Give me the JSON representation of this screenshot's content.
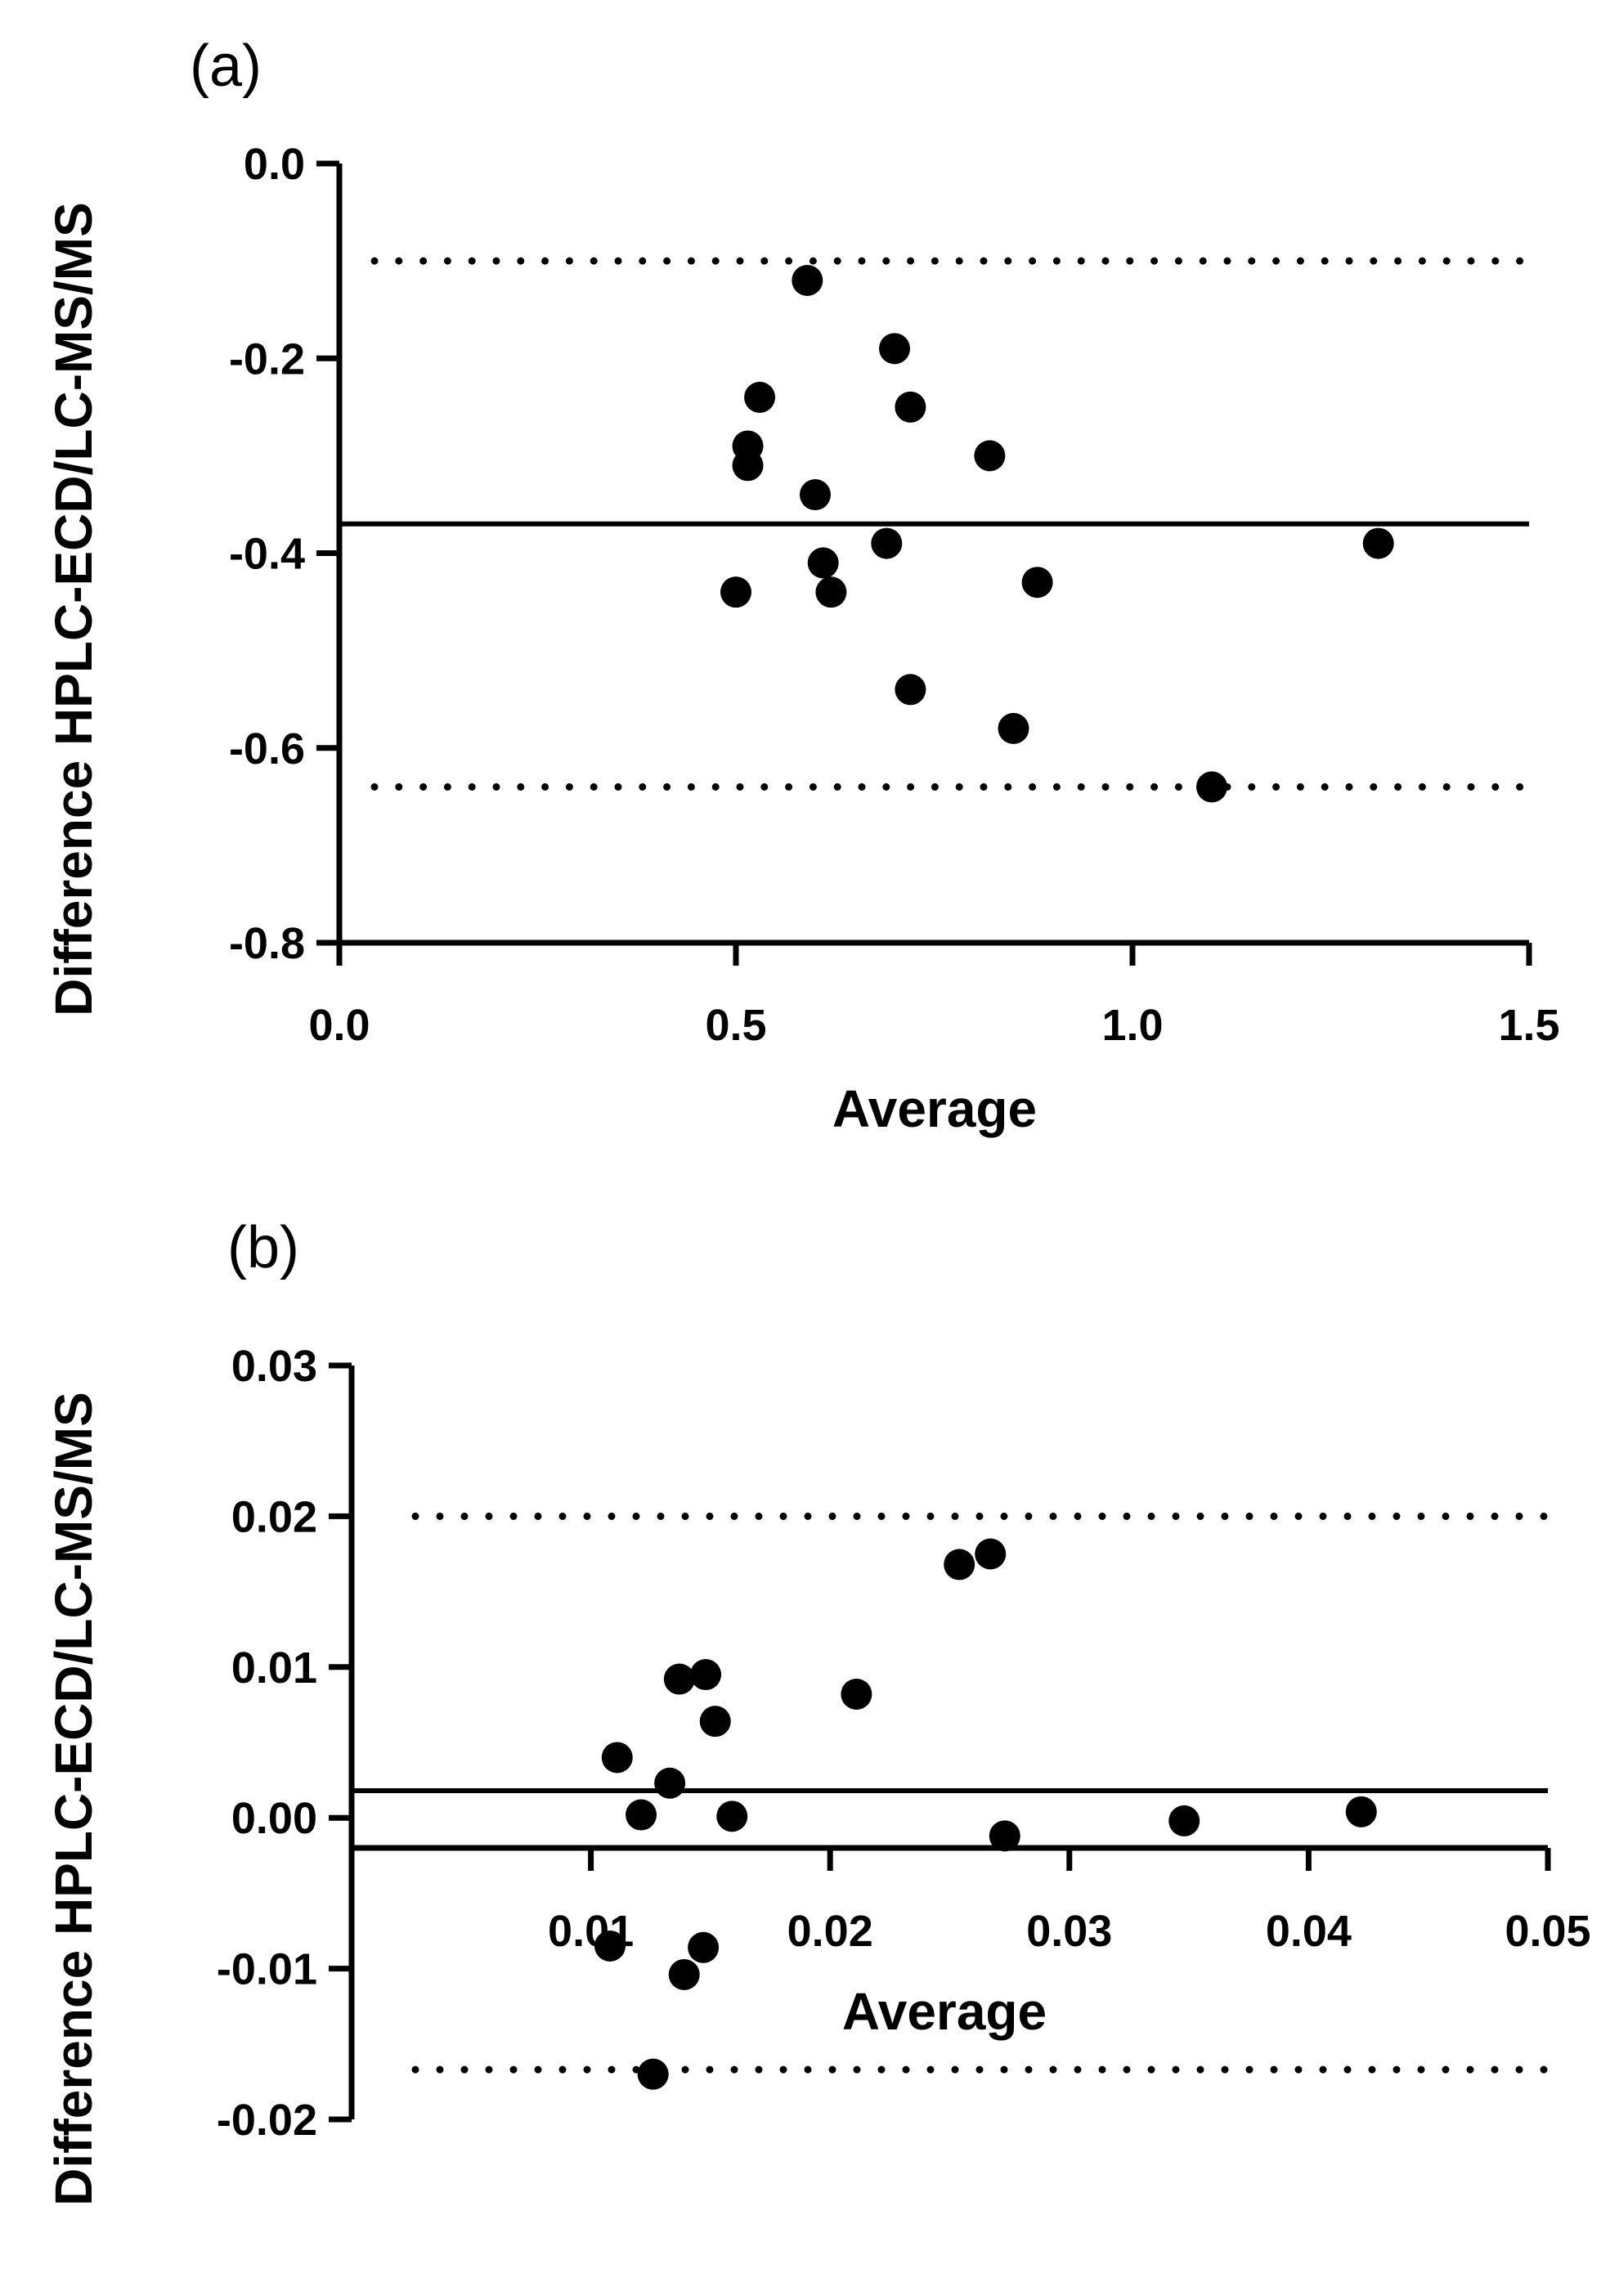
{
  "chart_data": [
    {
      "type": "scatter",
      "panel_label": "(a)",
      "title": "",
      "xlabel": "Average",
      "ylabel": "Difference HPLC-ECD/LC-MS/MS",
      "xlim": [
        0,
        1.5
      ],
      "ylim": [
        -0.8,
        0.0
      ],
      "xticks": [
        0.0,
        0.5,
        1.0,
        1.5
      ],
      "xtick_labels": [
        "0.0",
        "0.5",
        "1.0",
        "1.5"
      ],
      "yticks": [
        0.0,
        -0.2,
        -0.4,
        -0.6,
        -0.8
      ],
      "ytick_labels": [
        "0.0",
        "-0.2",
        "-0.4",
        "-0.6",
        "-0.8"
      ],
      "mean_bias": -0.37,
      "limits_of_agreement": [
        -0.1,
        -0.64
      ],
      "points": [
        {
          "x": 0.59,
          "y": -0.12
        },
        {
          "x": 0.7,
          "y": -0.19
        },
        {
          "x": 0.53,
          "y": -0.24
        },
        {
          "x": 0.72,
          "y": -0.25
        },
        {
          "x": 0.515,
          "y": -0.29
        },
        {
          "x": 0.515,
          "y": -0.31
        },
        {
          "x": 0.82,
          "y": -0.3
        },
        {
          "x": 0.6,
          "y": -0.34
        },
        {
          "x": 0.69,
          "y": -0.39
        },
        {
          "x": 0.61,
          "y": -0.41
        },
        {
          "x": 0.5,
          "y": -0.44
        },
        {
          "x": 0.62,
          "y": -0.44
        },
        {
          "x": 0.88,
          "y": -0.43
        },
        {
          "x": 1.31,
          "y": -0.39
        },
        {
          "x": 0.72,
          "y": -0.54
        },
        {
          "x": 0.85,
          "y": -0.58
        },
        {
          "x": 1.1,
          "y": -0.64
        }
      ]
    },
    {
      "type": "scatter",
      "panel_label": "(b)",
      "title": "",
      "xlabel": "Average",
      "ylabel": "Difference HPLC-ECD/LC-MS/MS",
      "xlim": [
        0,
        0.05
      ],
      "ylim": [
        -0.02,
        0.03
      ],
      "xticks": [
        0.01,
        0.02,
        0.03,
        0.04,
        0.05
      ],
      "xtick_labels": [
        "0.01",
        "0.02",
        "0.03",
        "0.04",
        "0.05"
      ],
      "yticks": [
        0.03,
        0.02,
        0.01,
        0.0,
        -0.01,
        -0.02
      ],
      "ytick_labels": [
        "0.03",
        "0.02",
        "0.01",
        "0.00",
        "-0.01",
        "-0.02"
      ],
      "mean_bias": 0.0018,
      "limits_of_agreement": [
        0.02,
        -0.0167
      ],
      "points": [
        {
          "x": 0.0254,
          "y": 0.0168
        },
        {
          "x": 0.0267,
          "y": 0.0175
        },
        {
          "x": 0.0137,
          "y": 0.0092
        },
        {
          "x": 0.0148,
          "y": 0.0095
        },
        {
          "x": 0.0211,
          "y": 0.0082
        },
        {
          "x": 0.0152,
          "y": 0.0064
        },
        {
          "x": 0.0111,
          "y": 0.004
        },
        {
          "x": 0.0133,
          "y": 0.0023
        },
        {
          "x": 0.0121,
          "y": 0.0002
        },
        {
          "x": 0.0159,
          "y": 0.0001
        },
        {
          "x": 0.0273,
          "y": -0.0012
        },
        {
          "x": 0.0348,
          "y": -0.0002
        },
        {
          "x": 0.0422,
          "y": 0.0004
        },
        {
          "x": 0.0108,
          "y": -0.0085
        },
        {
          "x": 0.0147,
          "y": -0.0086
        },
        {
          "x": 0.0139,
          "y": -0.0104
        },
        {
          "x": 0.0126,
          "y": -0.017
        }
      ]
    }
  ]
}
